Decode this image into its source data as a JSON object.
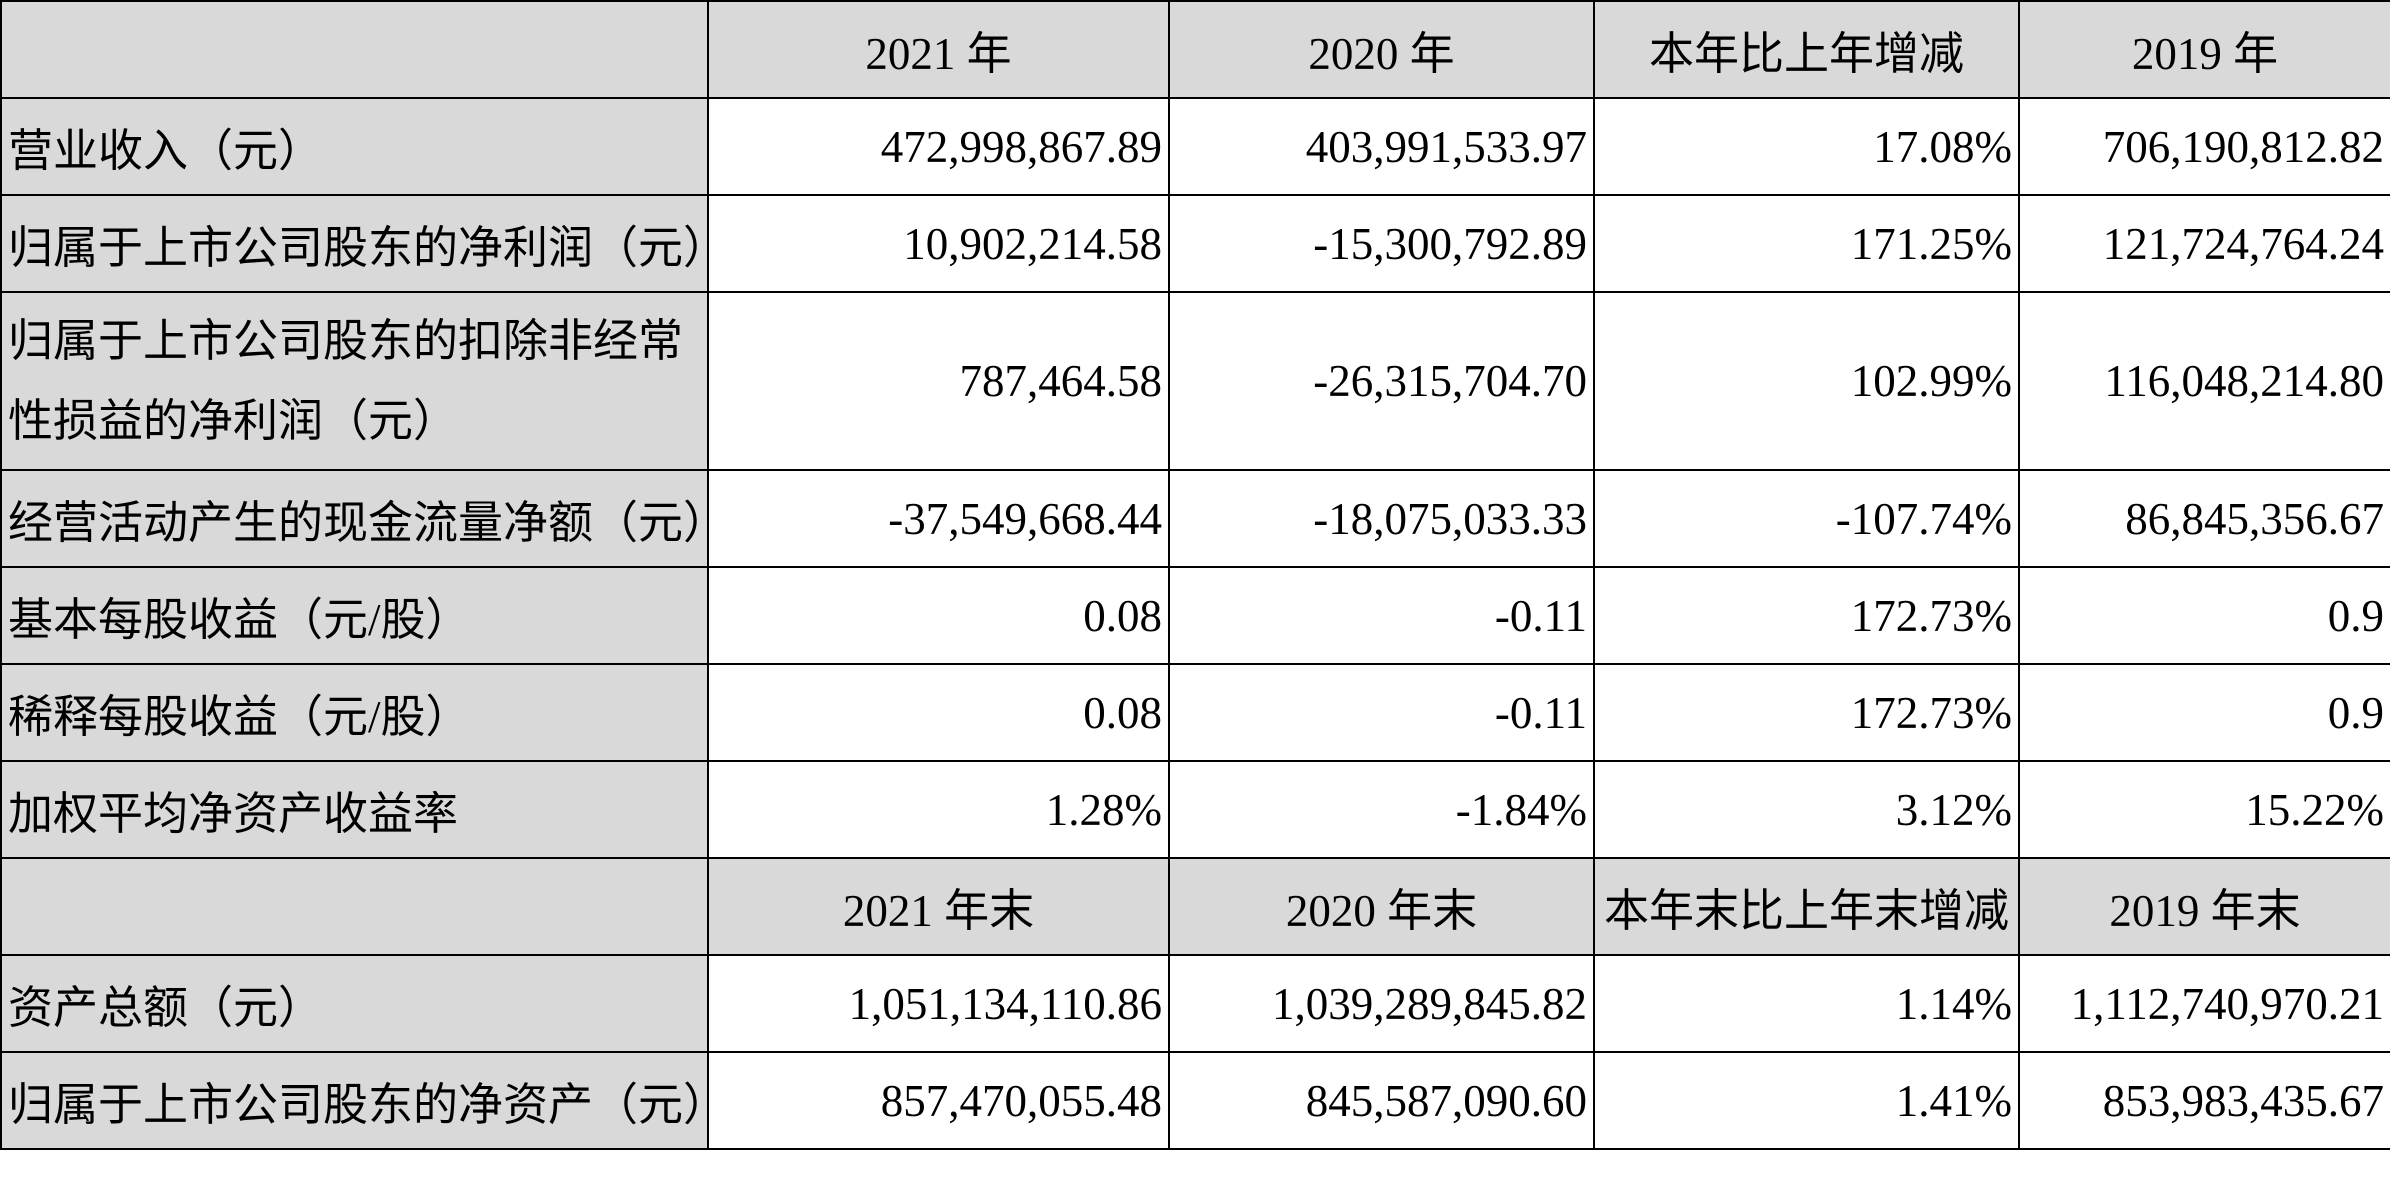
{
  "header_1": [
    "2021 年",
    "2020 年",
    "本年比上年增减",
    "2019 年"
  ],
  "rows_1": [
    {
      "label": "营业收入（元）",
      "values": [
        "472,998,867.89",
        "403,991,533.97",
        "17.08%",
        "706,190,812.82"
      ]
    },
    {
      "label": "归属于上市公司股东的净利润（元）",
      "values": [
        "10,902,214.58",
        "-15,300,792.89",
        "171.25%",
        "121,724,764.24"
      ]
    },
    {
      "label": "归属于上市公司股东的扣除非经常性损益的净利润（元）",
      "values": [
        "787,464.58",
        "-26,315,704.70",
        "102.99%",
        "116,048,214.80"
      ]
    },
    {
      "label": "经营活动产生的现金流量净额（元）",
      "values": [
        "-37,549,668.44",
        "-18,075,033.33",
        "-107.74%",
        "86,845,356.67"
      ]
    },
    {
      "label": "基本每股收益（元/股）",
      "values": [
        "0.08",
        "-0.11",
        "172.73%",
        "0.9"
      ]
    },
    {
      "label": "稀释每股收益（元/股）",
      "values": [
        "0.08",
        "-0.11",
        "172.73%",
        "0.9"
      ]
    },
    {
      "label": "加权平均净资产收益率",
      "values": [
        "1.28%",
        "-1.84%",
        "3.12%",
        "15.22%"
      ]
    }
  ],
  "header_2": [
    "2021 年末",
    "2020 年末",
    "本年末比上年末增减",
    "2019 年末"
  ],
  "rows_2": [
    {
      "label": "资产总额（元）",
      "values": [
        "1,051,134,110.86",
        "1,039,289,845.82",
        "1.14%",
        "1,112,740,970.21"
      ]
    },
    {
      "label": "归属于上市公司股东的净资产（元）",
      "values": [
        "857,470,055.48",
        "845,587,090.60",
        "1.41%",
        "853,983,435.67"
      ]
    }
  ]
}
